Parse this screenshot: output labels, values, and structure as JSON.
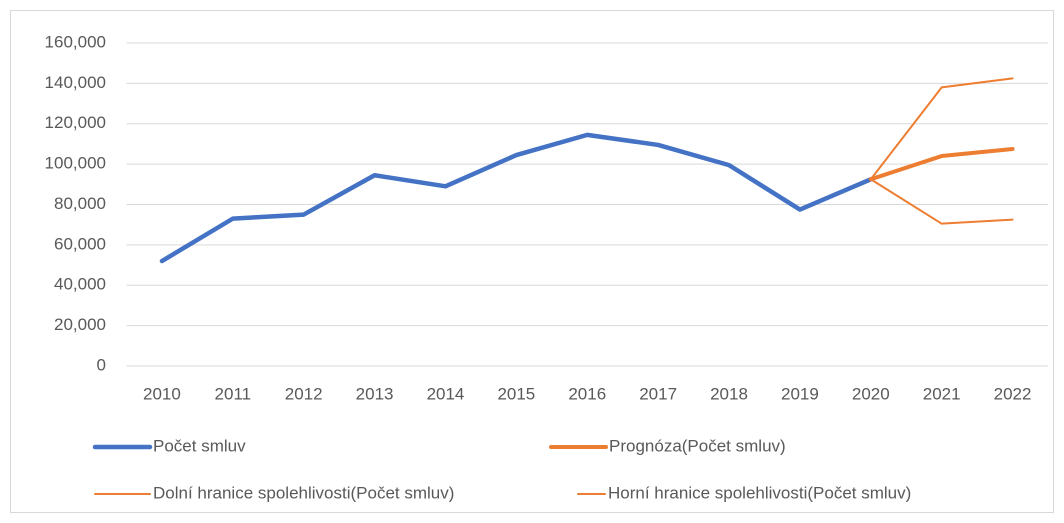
{
  "chart_data": {
    "type": "line",
    "categories": [
      "2010",
      "2011",
      "2012",
      "2013",
      "2014",
      "2015",
      "2016",
      "2017",
      "2018",
      "2019",
      "2020",
      "2021",
      "2022"
    ],
    "series": [
      {
        "name": "Počet smluv",
        "color": "#4472c4",
        "values": [
          52000,
          73000,
          75000,
          94500,
          89000,
          104500,
          114500,
          109500,
          99500,
          77500,
          92500,
          null,
          null
        ]
      },
      {
        "name": "Prognóza(Počet smluv)",
        "color": "#ed7d31",
        "values": [
          null,
          null,
          null,
          null,
          null,
          null,
          null,
          null,
          null,
          null,
          92500,
          104000,
          107500
        ]
      },
      {
        "name": "Dolní hranice spolehlivosti(Počet smluv)",
        "color": "#ed7d31",
        "values": [
          null,
          null,
          null,
          null,
          null,
          null,
          null,
          null,
          null,
          null,
          92500,
          70500,
          72500
        ]
      },
      {
        "name": "Horní hranice spolehlivosti(Počet smluv)",
        "color": "#ed7d31",
        "values": [
          null,
          null,
          null,
          null,
          null,
          null,
          null,
          null,
          null,
          null,
          92500,
          138000,
          142500
        ]
      }
    ],
    "ylim": [
      0,
      160000
    ],
    "yticks": [
      0,
      {
        "value": 20000,
        "label": "20,000"
      },
      {
        "value": 40000,
        "label": "40,000"
      },
      {
        "value": 60000,
        "label": "60,000"
      },
      {
        "value": 80000,
        "label": "80,000"
      },
      {
        "value": 100000,
        "label": "100,000"
      },
      {
        "value": 120000,
        "label": "120,000"
      },
      {
        "value": 140000,
        "label": "140,000"
      },
      {
        "value": 160000,
        "label": "160,000"
      }
    ],
    "grid": true
  }
}
